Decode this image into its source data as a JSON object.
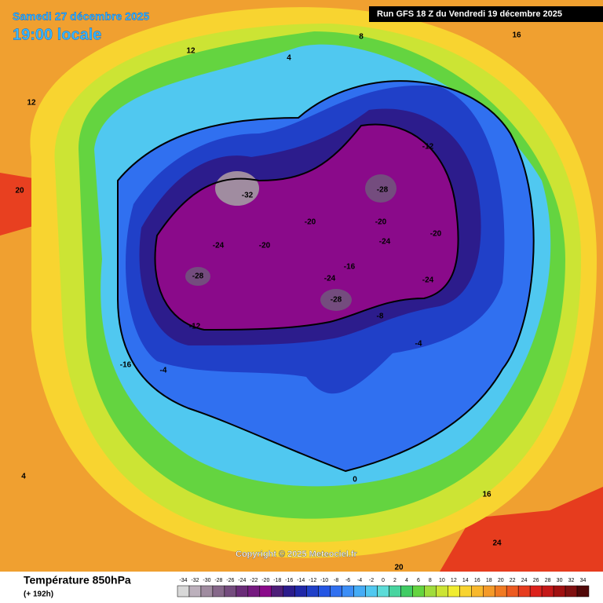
{
  "header": {
    "date": "Samedi 27 décembre 2025",
    "time": "19:00 locale",
    "run": "Run GFS 18 Z du Vendredi 19 décembre 2025"
  },
  "copyright": "Copyright © 2025 Meteociel.fr",
  "footer": {
    "title": "Température 850hPa",
    "lead": "(+ 192h)"
  },
  "legend": {
    "values": [
      -34,
      -32,
      -30,
      -28,
      -26,
      -24,
      -22,
      -20,
      -18,
      -16,
      -14,
      -12,
      -10,
      -8,
      -6,
      -4,
      -2,
      0,
      2,
      4,
      6,
      8,
      10,
      12,
      14,
      16,
      18,
      20,
      22,
      24,
      26,
      28,
      30,
      32,
      34
    ],
    "colors": [
      "#d8d8d8",
      "#bcb0bc",
      "#a08ca0",
      "#86688a",
      "#744c7e",
      "#6a2c78",
      "#761a80",
      "#8a0a8a",
      "#4e1e78",
      "#2c1c8c",
      "#2028a8",
      "#2040c8",
      "#2456e4",
      "#3070f0",
      "#3c8ef6",
      "#44acf6",
      "#50c8f0",
      "#5cdcd8",
      "#48d4a0",
      "#40cc64",
      "#64d440",
      "#a0dc3c",
      "#cce434",
      "#f0ec30",
      "#f8d430",
      "#f8b82c",
      "#f49a28",
      "#f07a22",
      "#ec5a20",
      "#e63c1e",
      "#dc221c",
      "#c41818",
      "#a01010",
      "#801010",
      "#500808"
    ]
  },
  "map_labels": [
    -24,
    -28,
    -20,
    -24,
    -28,
    -24,
    -28,
    -24,
    -20,
    -16,
    -20,
    -12,
    -16,
    -4,
    -8,
    -4,
    0,
    4,
    8,
    12,
    16,
    20,
    12,
    16,
    24,
    20,
    -20,
    -12,
    -32,
    4
  ]
}
